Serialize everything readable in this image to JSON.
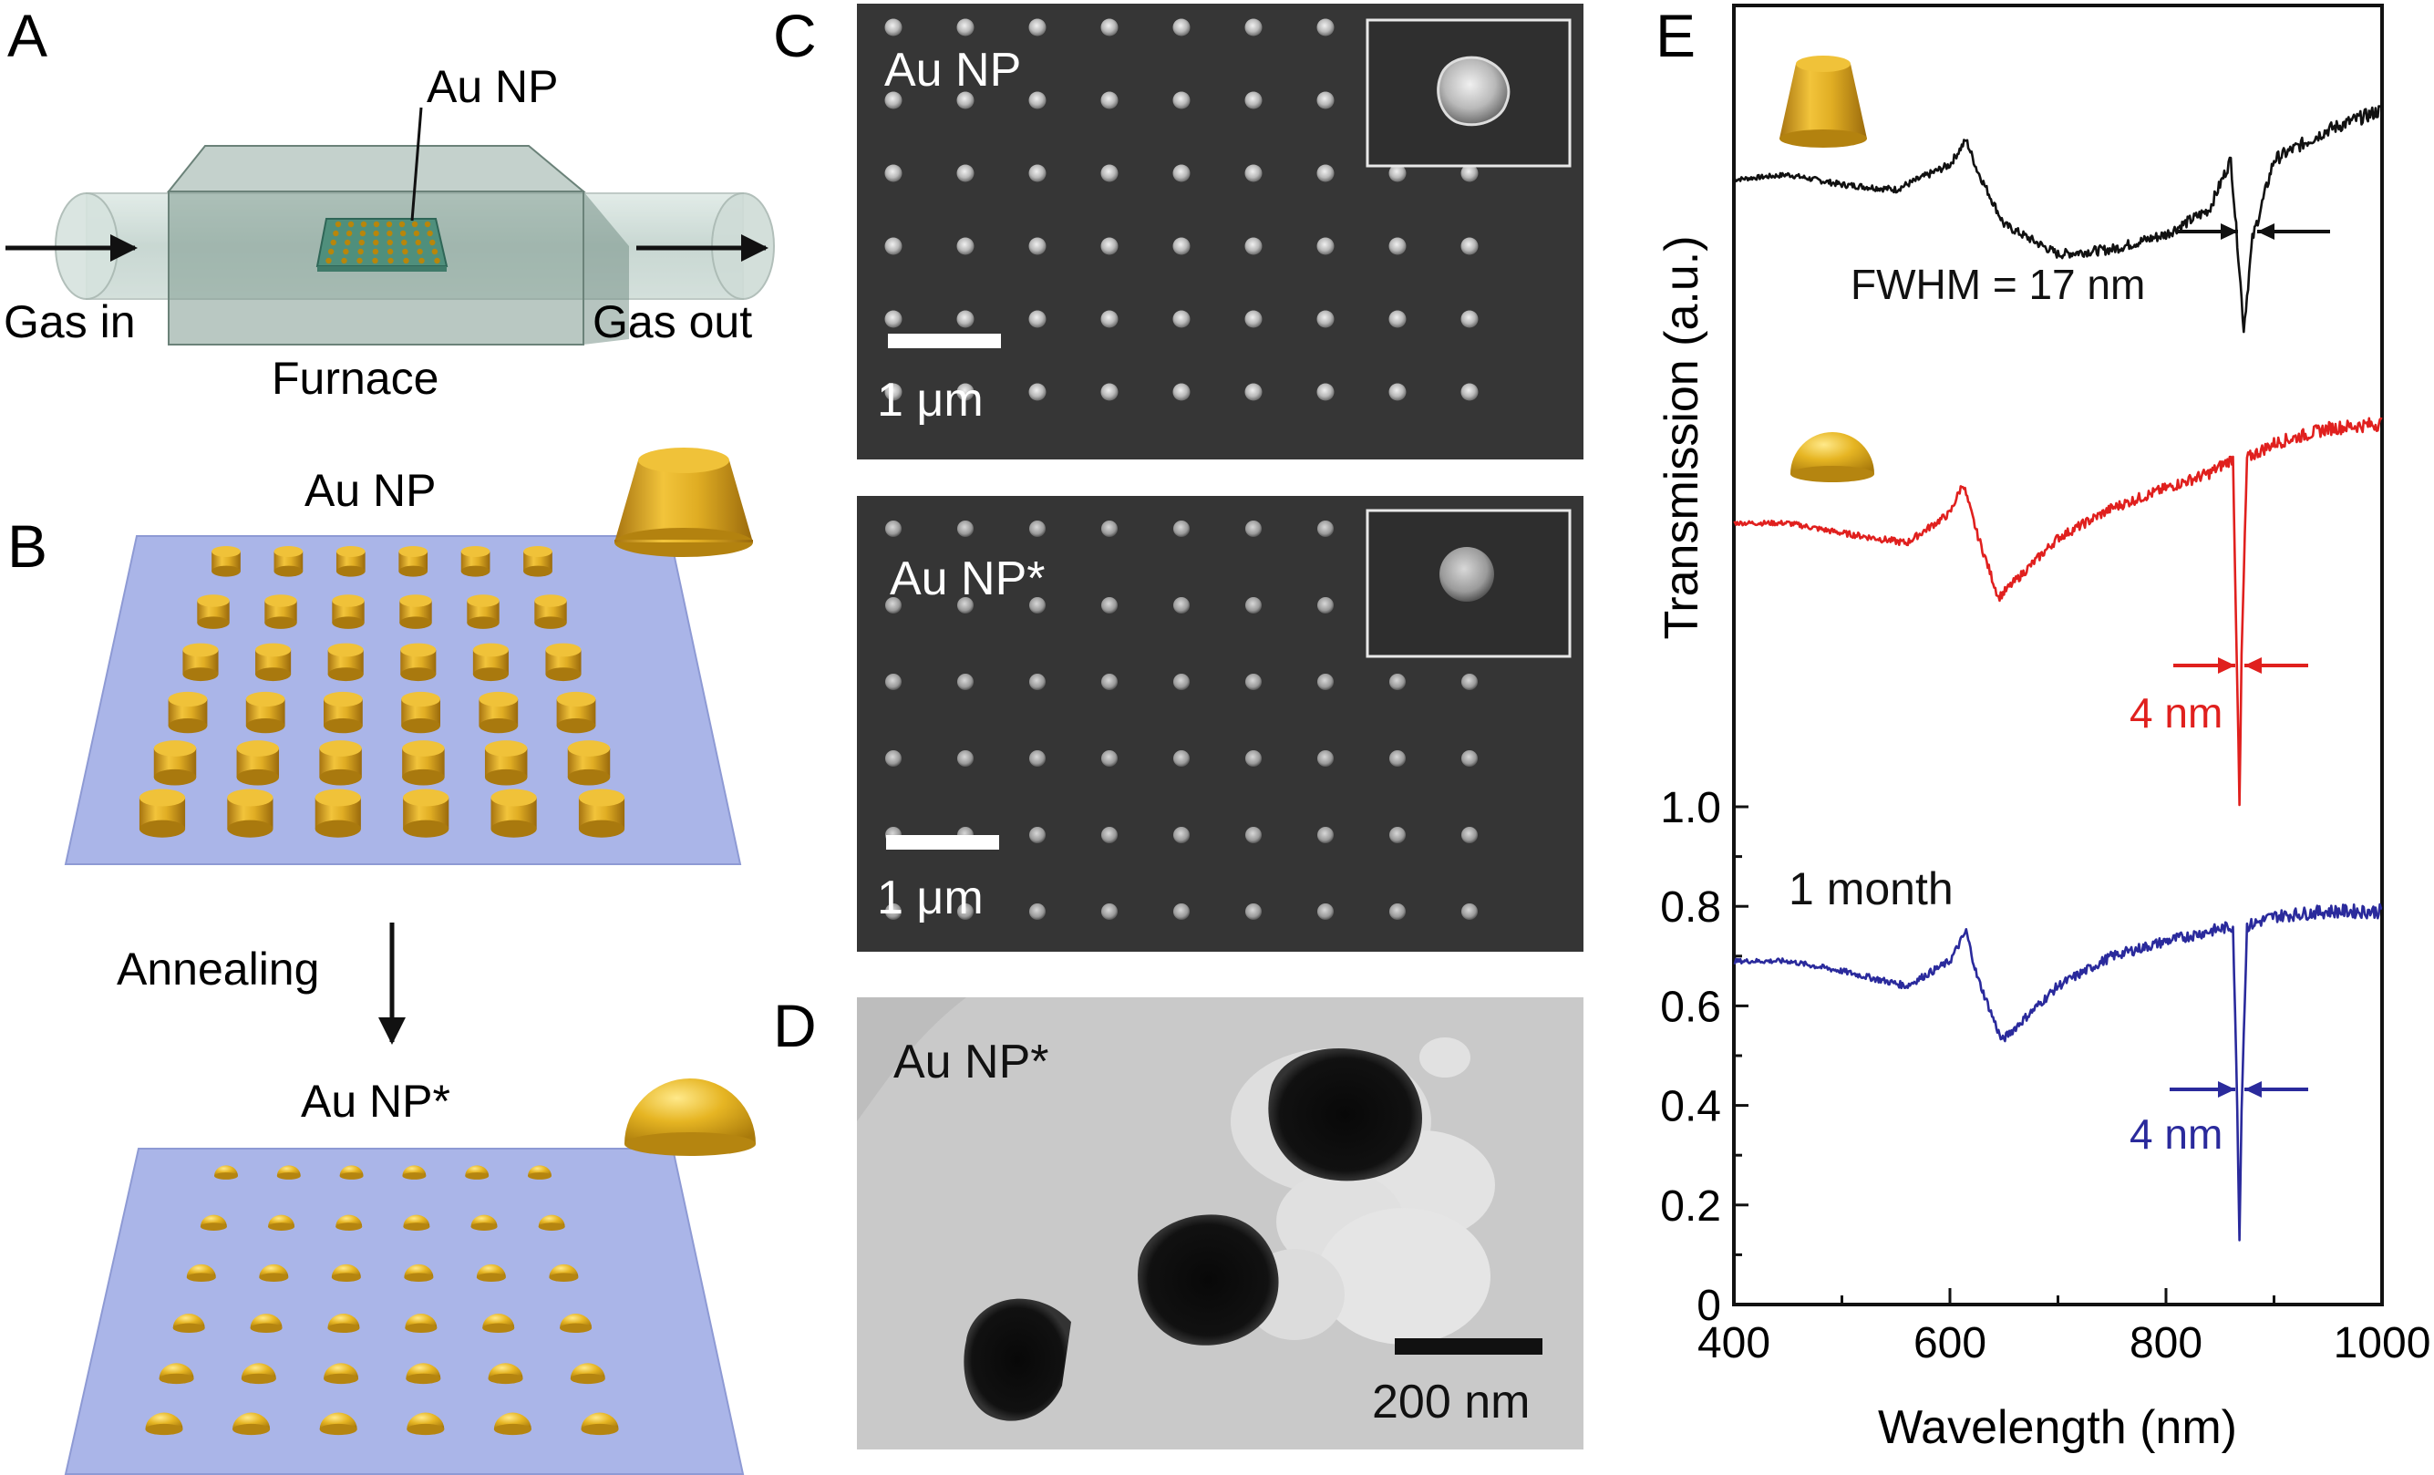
{
  "figure": {
    "panel_a": {
      "letter": "A",
      "np_label": "Au NP",
      "gas_in": "Gas in",
      "gas_out": "Gas out",
      "furnace": "Furnace"
    },
    "panel_b": {
      "letter": "B",
      "top_label": "Au NP",
      "step": "Annealing",
      "bottom_label": "Au NP*"
    },
    "panel_c": {
      "letter": "C",
      "top_label": "Au NP",
      "top_scale": "1 μm",
      "bottom_label": "Au NP*",
      "bottom_scale": "1 μm"
    },
    "panel_d": {
      "letter": "D",
      "label": "Au NP*",
      "scale": "200 nm"
    },
    "panel_e": {
      "letter": "E",
      "annotations": {
        "fwhm_black": "FWHM = 17 nm",
        "fwhm_red": "4 nm",
        "fwhm_blue": "4 nm",
        "one_month": "1 month"
      }
    },
    "colors": {
      "gold": "#d9a21b",
      "black_series": "#111111",
      "red_series": "#e0201e",
      "blue_series": "#2a2a9c",
      "substrate": "#a8b4e6"
    }
  },
  "chart_data": {
    "type": "line",
    "xlabel": "Wavelength (nm)",
    "ylabel": "Transmission (a.u.)",
    "xlim": [
      400,
      1000
    ],
    "x_ticks": [
      "400",
      "600",
      "800",
      "1000"
    ],
    "y_ticks": [
      "0",
      "0.2",
      "0.4",
      "0.6",
      "0.8",
      "1.0"
    ],
    "ylim": [
      0,
      1.0
    ],
    "grid": false,
    "series": [
      {
        "color": "#111111",
        "x": [
          400,
          450,
          500,
          550,
          600,
          615,
          625,
          650,
          700,
          750,
          800,
          840,
          860,
          868,
          872,
          880,
          900,
          950,
          1000
        ],
        "y": [
          2.26,
          2.27,
          2.25,
          2.24,
          2.29,
          2.34,
          2.28,
          2.17,
          2.11,
          2.12,
          2.15,
          2.2,
          2.3,
          2.08,
          1.96,
          2.14,
          2.3,
          2.36,
          2.4
        ]
      },
      {
        "color": "#e0201e",
        "x": [
          400,
          450,
          500,
          560,
          600,
          612,
          625,
          645,
          700,
          750,
          800,
          840,
          862,
          866,
          868,
          870,
          875,
          900,
          950,
          1000
        ],
        "y": [
          1.57,
          1.57,
          1.55,
          1.53,
          1.59,
          1.65,
          1.55,
          1.42,
          1.54,
          1.6,
          1.64,
          1.67,
          1.7,
          1.25,
          1.0,
          1.3,
          1.7,
          1.73,
          1.76,
          1.77
        ]
      },
      {
        "color": "#2a2a9c",
        "x": [
          400,
          450,
          500,
          560,
          600,
          615,
          625,
          648,
          700,
          750,
          800,
          840,
          862,
          866,
          868,
          870,
          875,
          900,
          950,
          1000
        ],
        "y": [
          0.69,
          0.69,
          0.67,
          0.64,
          0.69,
          0.75,
          0.66,
          0.53,
          0.64,
          0.7,
          0.73,
          0.75,
          0.76,
          0.4,
          0.13,
          0.4,
          0.76,
          0.78,
          0.79,
          0.79
        ]
      }
    ]
  }
}
